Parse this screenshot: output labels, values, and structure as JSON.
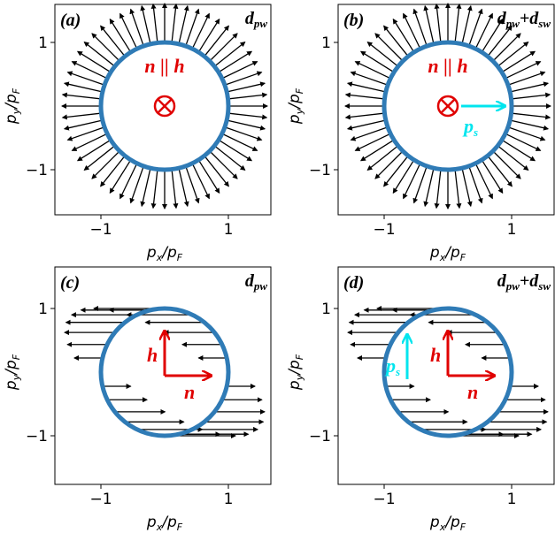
{
  "colors": {
    "circle": "#2f7bb6",
    "arrow": "#000000",
    "red": "#e00000",
    "cyan": "#00e5ee",
    "frame": "#000000"
  },
  "axes": {
    "ticks_x": [
      "−1",
      "1"
    ],
    "ticks_y": [
      "1",
      "−1"
    ],
    "xlabel_main": "p",
    "xlabel_sub": "x",
    "xlabel_den_main": "p",
    "xlabel_den_sub": "F",
    "ylabel_main": "p",
    "ylabel_sub": "y",
    "ylabel_den_main": "p",
    "ylabel_den_sub": "F"
  },
  "panels": [
    {
      "label": "(a)",
      "title_parts": [
        {
          "main": "d",
          "sub": "pw"
        }
      ],
      "title_plus": "",
      "mode": "radial",
      "red_label": "n || h",
      "has_ps_arrow": false,
      "ps_label_main": "",
      "ps_label_sub": ""
    },
    {
      "label": "(b)",
      "title_parts": [
        {
          "main": "d",
          "sub": "pw"
        },
        {
          "main": "d",
          "sub": "sw"
        }
      ],
      "title_plus": "+",
      "mode": "radial",
      "red_label": "n || h",
      "has_ps_arrow": true,
      "ps_label_main": "p",
      "ps_label_sub": "s"
    },
    {
      "label": "(c)",
      "title_parts": [
        {
          "main": "d",
          "sub": "pw"
        }
      ],
      "title_plus": "",
      "mode": "horizontal",
      "h_label": "h",
      "n_label": "n",
      "has_ps_arrow": false,
      "ps_label_main": "",
      "ps_label_sub": ""
    },
    {
      "label": "(d)",
      "title_parts": [
        {
          "main": "d",
          "sub": "pw"
        },
        {
          "main": "d",
          "sub": "sw"
        }
      ],
      "title_plus": "+",
      "mode": "horizontal",
      "h_label": "h",
      "n_label": "n",
      "has_ps_arrow": true,
      "ps_label_main": "p",
      "ps_label_sub": "s"
    }
  ]
}
